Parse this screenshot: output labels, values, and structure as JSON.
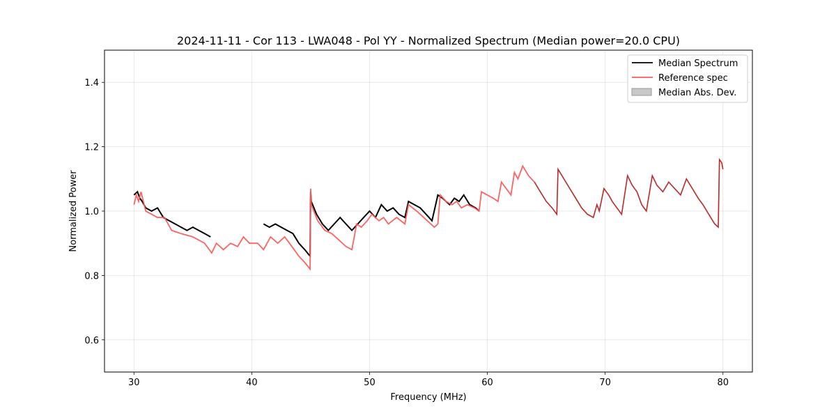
{
  "chart_data": {
    "type": "line",
    "title": "2024-11-11 - Cor 113 - LWA048 - Pol YY - Normalized Spectrum (Median power=20.0 CPU)",
    "xlabel": "Frequency (MHz)",
    "ylabel": "Normalized Power",
    "xlim": [
      27.5,
      82.5
    ],
    "ylim": [
      0.5,
      1.5
    ],
    "xticks": [
      30,
      40,
      50,
      60,
      70,
      80
    ],
    "xtick_labels": [
      "30",
      "40",
      "50",
      "60",
      "70",
      "80"
    ],
    "yticks": [
      0.6,
      0.8,
      1.0,
      1.2,
      1.4
    ],
    "ytick_labels": [
      "0.6",
      "0.8",
      "1.0",
      "1.2",
      "1.4"
    ],
    "grid": true,
    "legend_position": "top-right",
    "legend": [
      "Median Spectrum",
      "Reference spec",
      "Median Abs. Dev."
    ],
    "series": [
      {
        "name": "Reference spec",
        "color": "#ff5a5a",
        "x": [
          30.0,
          30.2,
          30.4,
          30.6,
          31.0,
          31.5,
          32.0,
          32.6,
          33.2,
          34.0,
          35.0,
          36.0,
          36.6,
          37.0,
          37.6,
          38.2,
          38.8,
          39.3,
          39.8,
          40.5,
          41.0,
          41.6,
          42.2,
          42.8,
          43.4,
          44.0,
          44.5,
          44.95,
          45.0,
          45.05,
          45.6,
          46.2,
          46.8,
          47.4,
          48.0,
          48.5,
          48.9,
          49.3,
          49.8,
          50.2,
          50.8,
          51.2,
          51.6,
          52.3,
          53.0,
          53.3,
          54.0,
          54.6,
          55.2,
          55.5,
          55.8,
          56.0,
          56.5,
          57.0,
          57.4,
          57.8,
          58.3,
          58.9,
          59.3,
          59.5,
          60.0,
          60.5,
          60.9,
          61.2,
          61.6,
          62.0,
          62.3,
          62.6,
          63.0,
          63.5,
          64.0,
          64.5,
          65.0,
          65.5,
          65.9,
          66.0,
          66.5,
          67.0,
          67.5,
          68.0,
          68.5,
          69.0,
          69.3,
          69.5,
          69.9,
          70.3,
          70.6,
          71.0,
          71.4,
          71.9,
          72.3,
          72.7,
          73.1,
          73.5,
          74.0,
          74.4,
          74.9,
          75.4,
          75.9,
          76.4,
          76.9,
          77.4,
          77.9,
          78.3,
          78.8,
          79.3,
          79.6,
          79.7,
          79.9,
          80.0
        ],
        "y": [
          1.02,
          1.05,
          1.03,
          1.06,
          1.0,
          0.99,
          0.98,
          0.98,
          0.94,
          0.93,
          0.92,
          0.9,
          0.87,
          0.9,
          0.88,
          0.9,
          0.89,
          0.92,
          0.9,
          0.9,
          0.88,
          0.92,
          0.9,
          0.92,
          0.89,
          0.86,
          0.84,
          0.82,
          1.07,
          1.02,
          0.97,
          0.94,
          0.93,
          0.91,
          0.89,
          0.88,
          0.96,
          0.95,
          0.97,
          0.99,
          0.97,
          0.98,
          0.96,
          0.98,
          0.96,
          1.02,
          1.0,
          0.98,
          0.96,
          0.95,
          0.96,
          1.05,
          1.03,
          1.02,
          1.03,
          1.01,
          1.02,
          1.01,
          1.0,
          1.06,
          1.05,
          1.04,
          1.03,
          1.09,
          1.07,
          1.05,
          1.12,
          1.1,
          1.14,
          1.11,
          1.09,
          1.06,
          1.03,
          1.01,
          0.99,
          1.13,
          1.1,
          1.07,
          1.04,
          1.01,
          0.99,
          0.98,
          1.02,
          1.0,
          1.07,
          1.05,
          1.03,
          1.01,
          0.99,
          1.11,
          1.08,
          1.06,
          1.02,
          1.0,
          1.11,
          1.08,
          1.06,
          1.09,
          1.07,
          1.05,
          1.1,
          1.07,
          1.04,
          1.02,
          0.99,
          0.96,
          0.95,
          1.16,
          1.15,
          1.13
        ]
      },
      {
        "name": "Median Spectrum",
        "color": "#000000",
        "x": [
          30.0,
          30.3,
          30.5,
          30.7,
          31.0,
          31.5,
          32.0,
          32.5,
          33.0,
          33.5,
          34.0,
          34.5,
          35.0,
          35.5,
          36.0,
          36.5
        ],
        "y": [
          1.05,
          1.06,
          1.04,
          1.03,
          1.01,
          1.0,
          1.01,
          0.98,
          0.97,
          0.96,
          0.95,
          0.94,
          0.95,
          0.94,
          0.93,
          0.92
        ],
        "x2": [
          41.0,
          41.5,
          42.0,
          42.5,
          43.0,
          43.5,
          44.0,
          44.5,
          44.95,
          45.0,
          45.05,
          45.5,
          46.0,
          46.5,
          47.0,
          47.5,
          48.0,
          48.5,
          49.0,
          49.5,
          50.0,
          50.5,
          51.0,
          51.5,
          52.0,
          52.5,
          53.0,
          53.3,
          53.8,
          54.3,
          54.8,
          55.3,
          55.8,
          56.2,
          56.8,
          57.2,
          57.6,
          58.0,
          58.5,
          59.0,
          59.3
        ],
        "y2": [
          0.96,
          0.95,
          0.96,
          0.95,
          0.94,
          0.93,
          0.9,
          0.88,
          0.86,
          1.06,
          1.03,
          0.99,
          0.96,
          0.94,
          0.96,
          0.98,
          0.96,
          0.94,
          0.96,
          0.98,
          1.0,
          0.98,
          1.02,
          1.0,
          1.01,
          0.99,
          0.98,
          1.03,
          1.02,
          1.01,
          0.99,
          0.97,
          1.05,
          1.04,
          1.02,
          1.04,
          1.03,
          1.05,
          1.02,
          1.01,
          1.0
        ]
      }
    ]
  }
}
